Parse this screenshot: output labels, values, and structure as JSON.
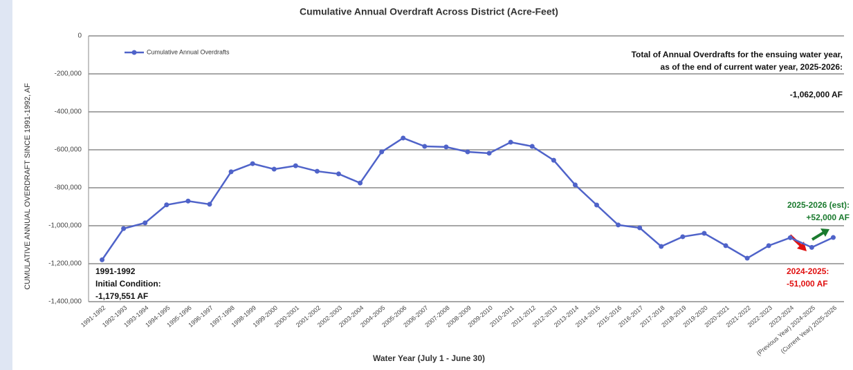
{
  "chart_data": {
    "type": "line",
    "title": "Cumulative Annual Overdraft Across District (Acre-Feet)",
    "x_label": "Water Year (July 1 - June 30)",
    "y_label": "CUMULATIVE ANNUAL OVERDRAFT SINCE 1991-1992, AF",
    "categories": [
      "1991-1992",
      "1992-1993",
      "1993-1994",
      "1994-1995",
      "1995-1996",
      "1996-1997",
      "1997-1998",
      "1998-1999",
      "1999-2000",
      "2000-2001",
      "2001-2002",
      "2002-2003",
      "2003-2004",
      "2004-2005",
      "2005-2006",
      "2006-2007",
      "2007-2008",
      "2008-2009",
      "2009-2010",
      "2010-2011",
      "2011-2012",
      "2012-2013",
      "2013-2014",
      "2014-2015",
      "2015-2016",
      "2016-2017",
      "2017-2018",
      "2018-2019",
      "2019-2020",
      "2020-2021",
      "2021-2022",
      "2022-2023",
      "2023-2024",
      "(Previous Year) 2024-2025",
      "(Current Year) 2025-2026"
    ],
    "series": [
      {
        "name": "Cumulative Annual Overdrafts",
        "color": "#4f63c9",
        "values": [
          -1179551,
          -1015000,
          -985000,
          -890000,
          -870000,
          -887000,
          -716000,
          -673000,
          -702000,
          -684000,
          -713000,
          -727000,
          -775000,
          -611000,
          -538000,
          -582000,
          -585000,
          -611000,
          -618000,
          -560000,
          -582000,
          -655000,
          -785000,
          -891000,
          -996000,
          -1011000,
          -1109000,
          -1058000,
          -1040000,
          -1105000,
          -1171000,
          -1105000,
          -1063000,
          -1114000,
          -1062000
        ]
      }
    ],
    "ylim": [
      -1400000,
      0
    ],
    "yticks": [
      {
        "value": -1400000,
        "label": "-1,400,000"
      },
      {
        "value": -1200000,
        "label": "-1,200,000"
      },
      {
        "value": -1000000,
        "label": "-1,000,000"
      },
      {
        "value": -800000,
        "label": "-800,000"
      },
      {
        "value": -600000,
        "label": "-600,000"
      },
      {
        "value": -400000,
        "label": "-400,000"
      },
      {
        "value": -200000,
        "label": "-200,000"
      },
      0
    ],
    "grid": true,
    "legend": "top-left",
    "annotations": [
      {
        "lines": [
          "Total of Annual Overdrafts for the ensuing water year,",
          "as of the end of current water year, 2025-2026:",
          "-1,062,000 AF"
        ],
        "color": "#111111"
      },
      {
        "lines": [
          "2025-2026 (est):",
          "+52,000 AF"
        ],
        "color": "#1a7a2e"
      },
      {
        "lines": [
          "2024-2025:",
          "-51,000 AF"
        ],
        "color": "#e01010"
      },
      {
        "lines": [
          "1991-1992",
          "Initial Condition:",
          "-1,179,551 AF"
        ],
        "color": "#111111"
      }
    ]
  }
}
